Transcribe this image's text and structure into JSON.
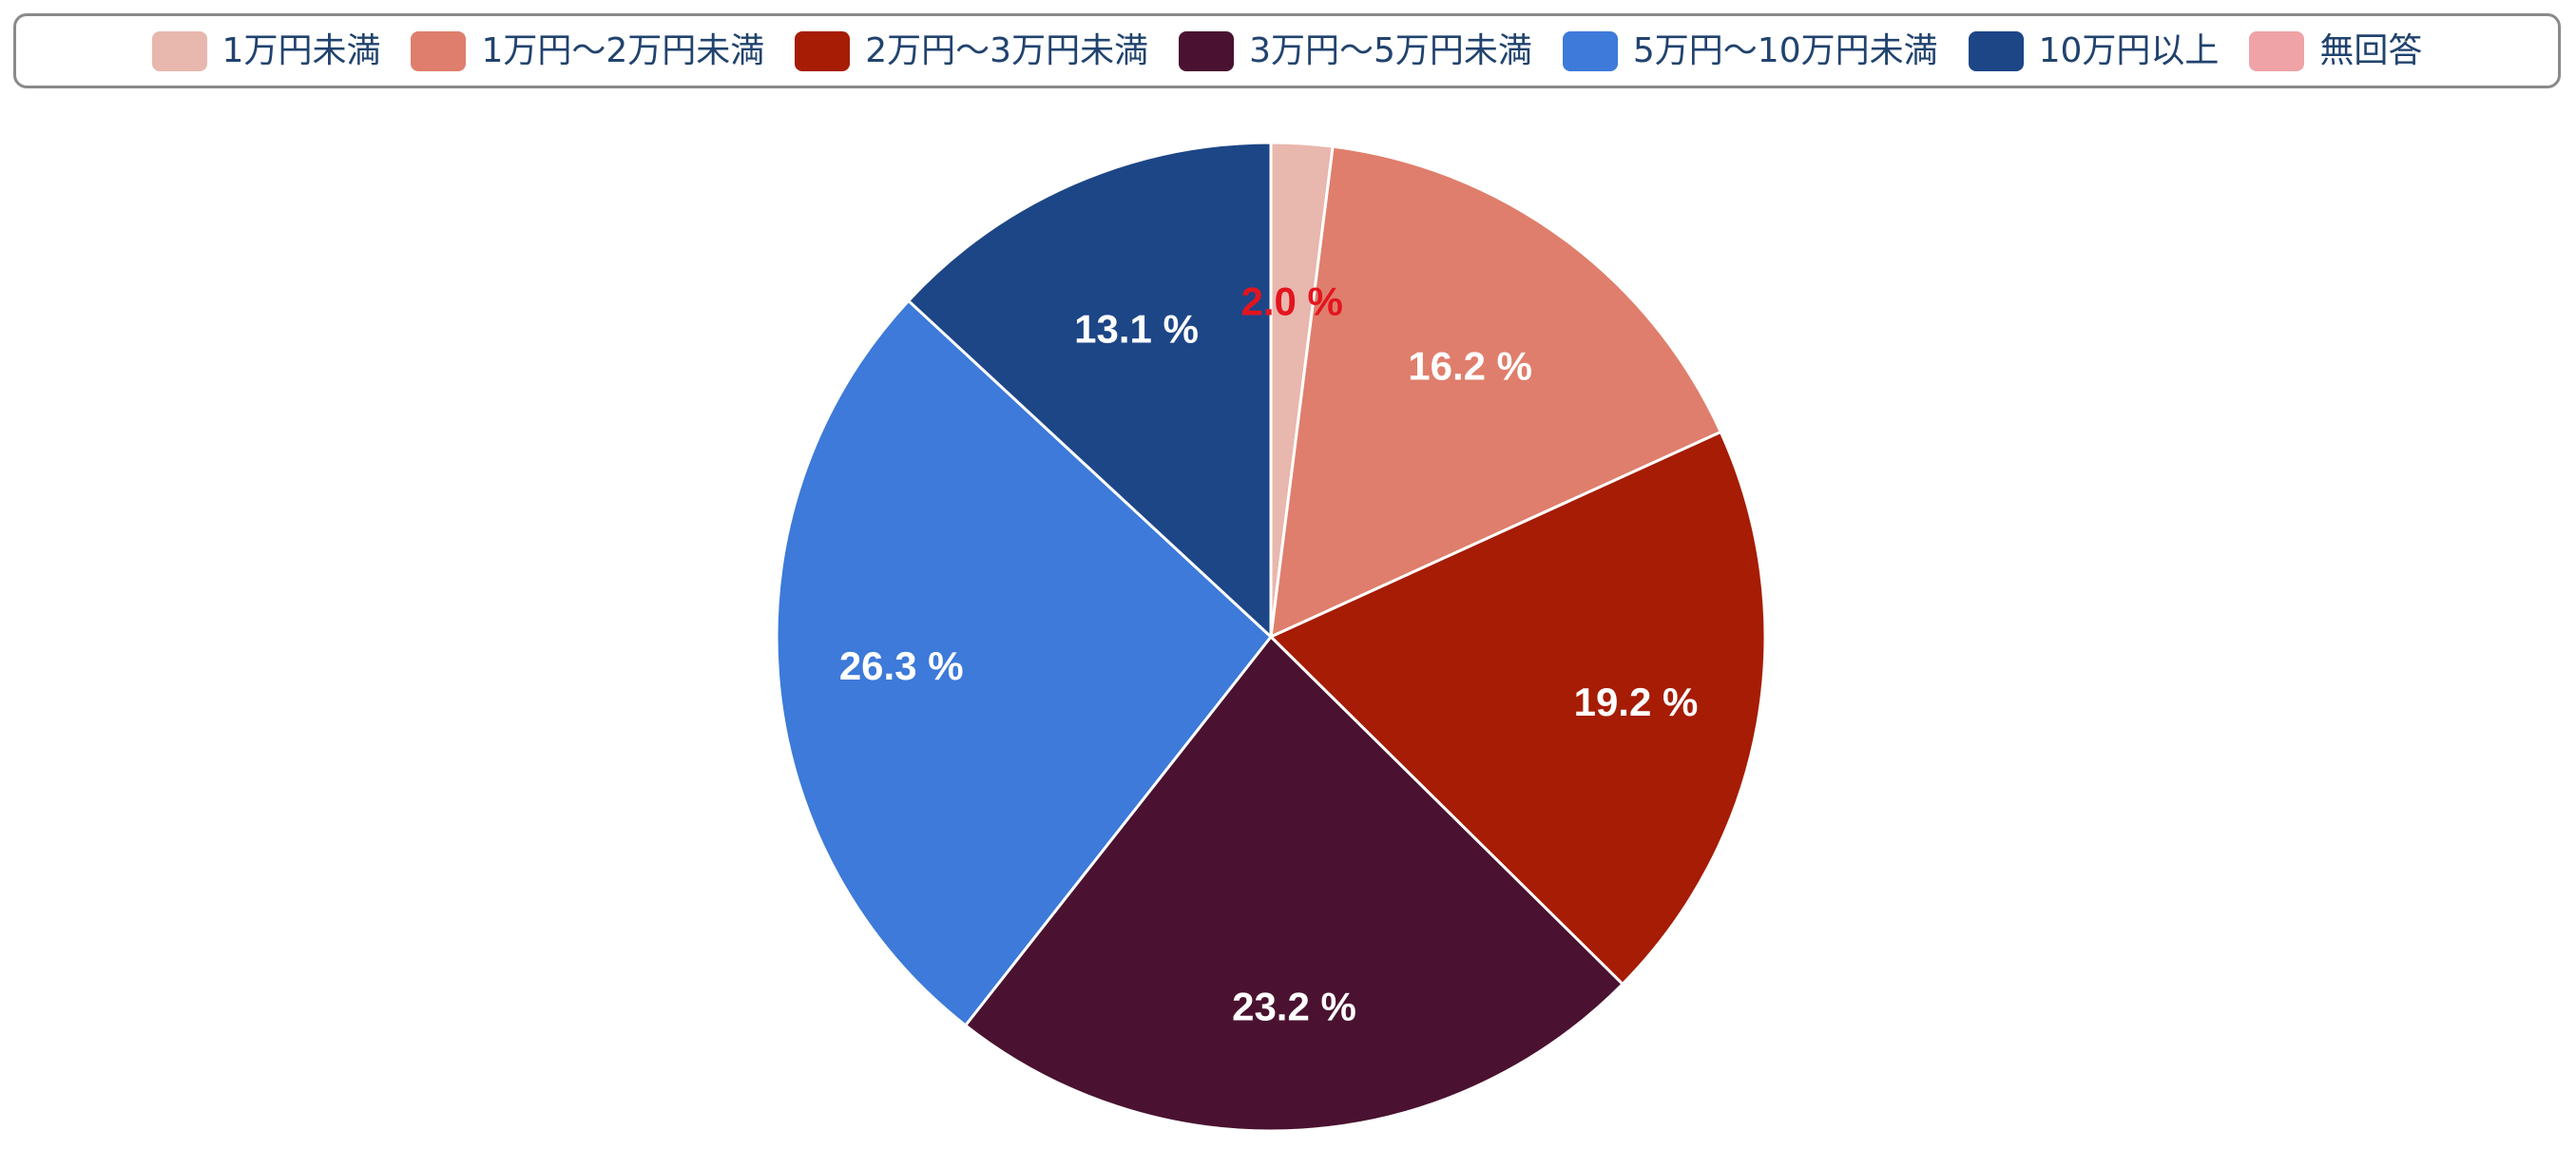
{
  "chart_data": {
    "type": "pie",
    "title": "",
    "legend_position": "top",
    "categories": [
      "1万円未満",
      "1万円〜2万円未満",
      "2万円〜3万円未満",
      "3万円〜5万円未満",
      "5万円〜10万円未満",
      "10万円以上",
      "無回答"
    ],
    "values": [
      2.0,
      16.2,
      19.2,
      23.2,
      26.3,
      13.1,
      0.0
    ],
    "value_labels": [
      "2.0 %",
      "16.2 %",
      "19.2 %",
      "23.2 %",
      "26.3 %",
      "13.1 %",
      ""
    ],
    "colors": [
      "#e8b7ad",
      "#df7e6c",
      "#a61c04",
      "#4a1230",
      "#3d7ad9",
      "#1d4687",
      "#efa3a6"
    ],
    "label_colors": [
      "#e3151f",
      "#ffffff",
      "#ffffff",
      "#ffffff",
      "#ffffff",
      "#ffffff",
      "#ffffff"
    ],
    "start": "12 o'clock",
    "direction": "clockwise"
  }
}
